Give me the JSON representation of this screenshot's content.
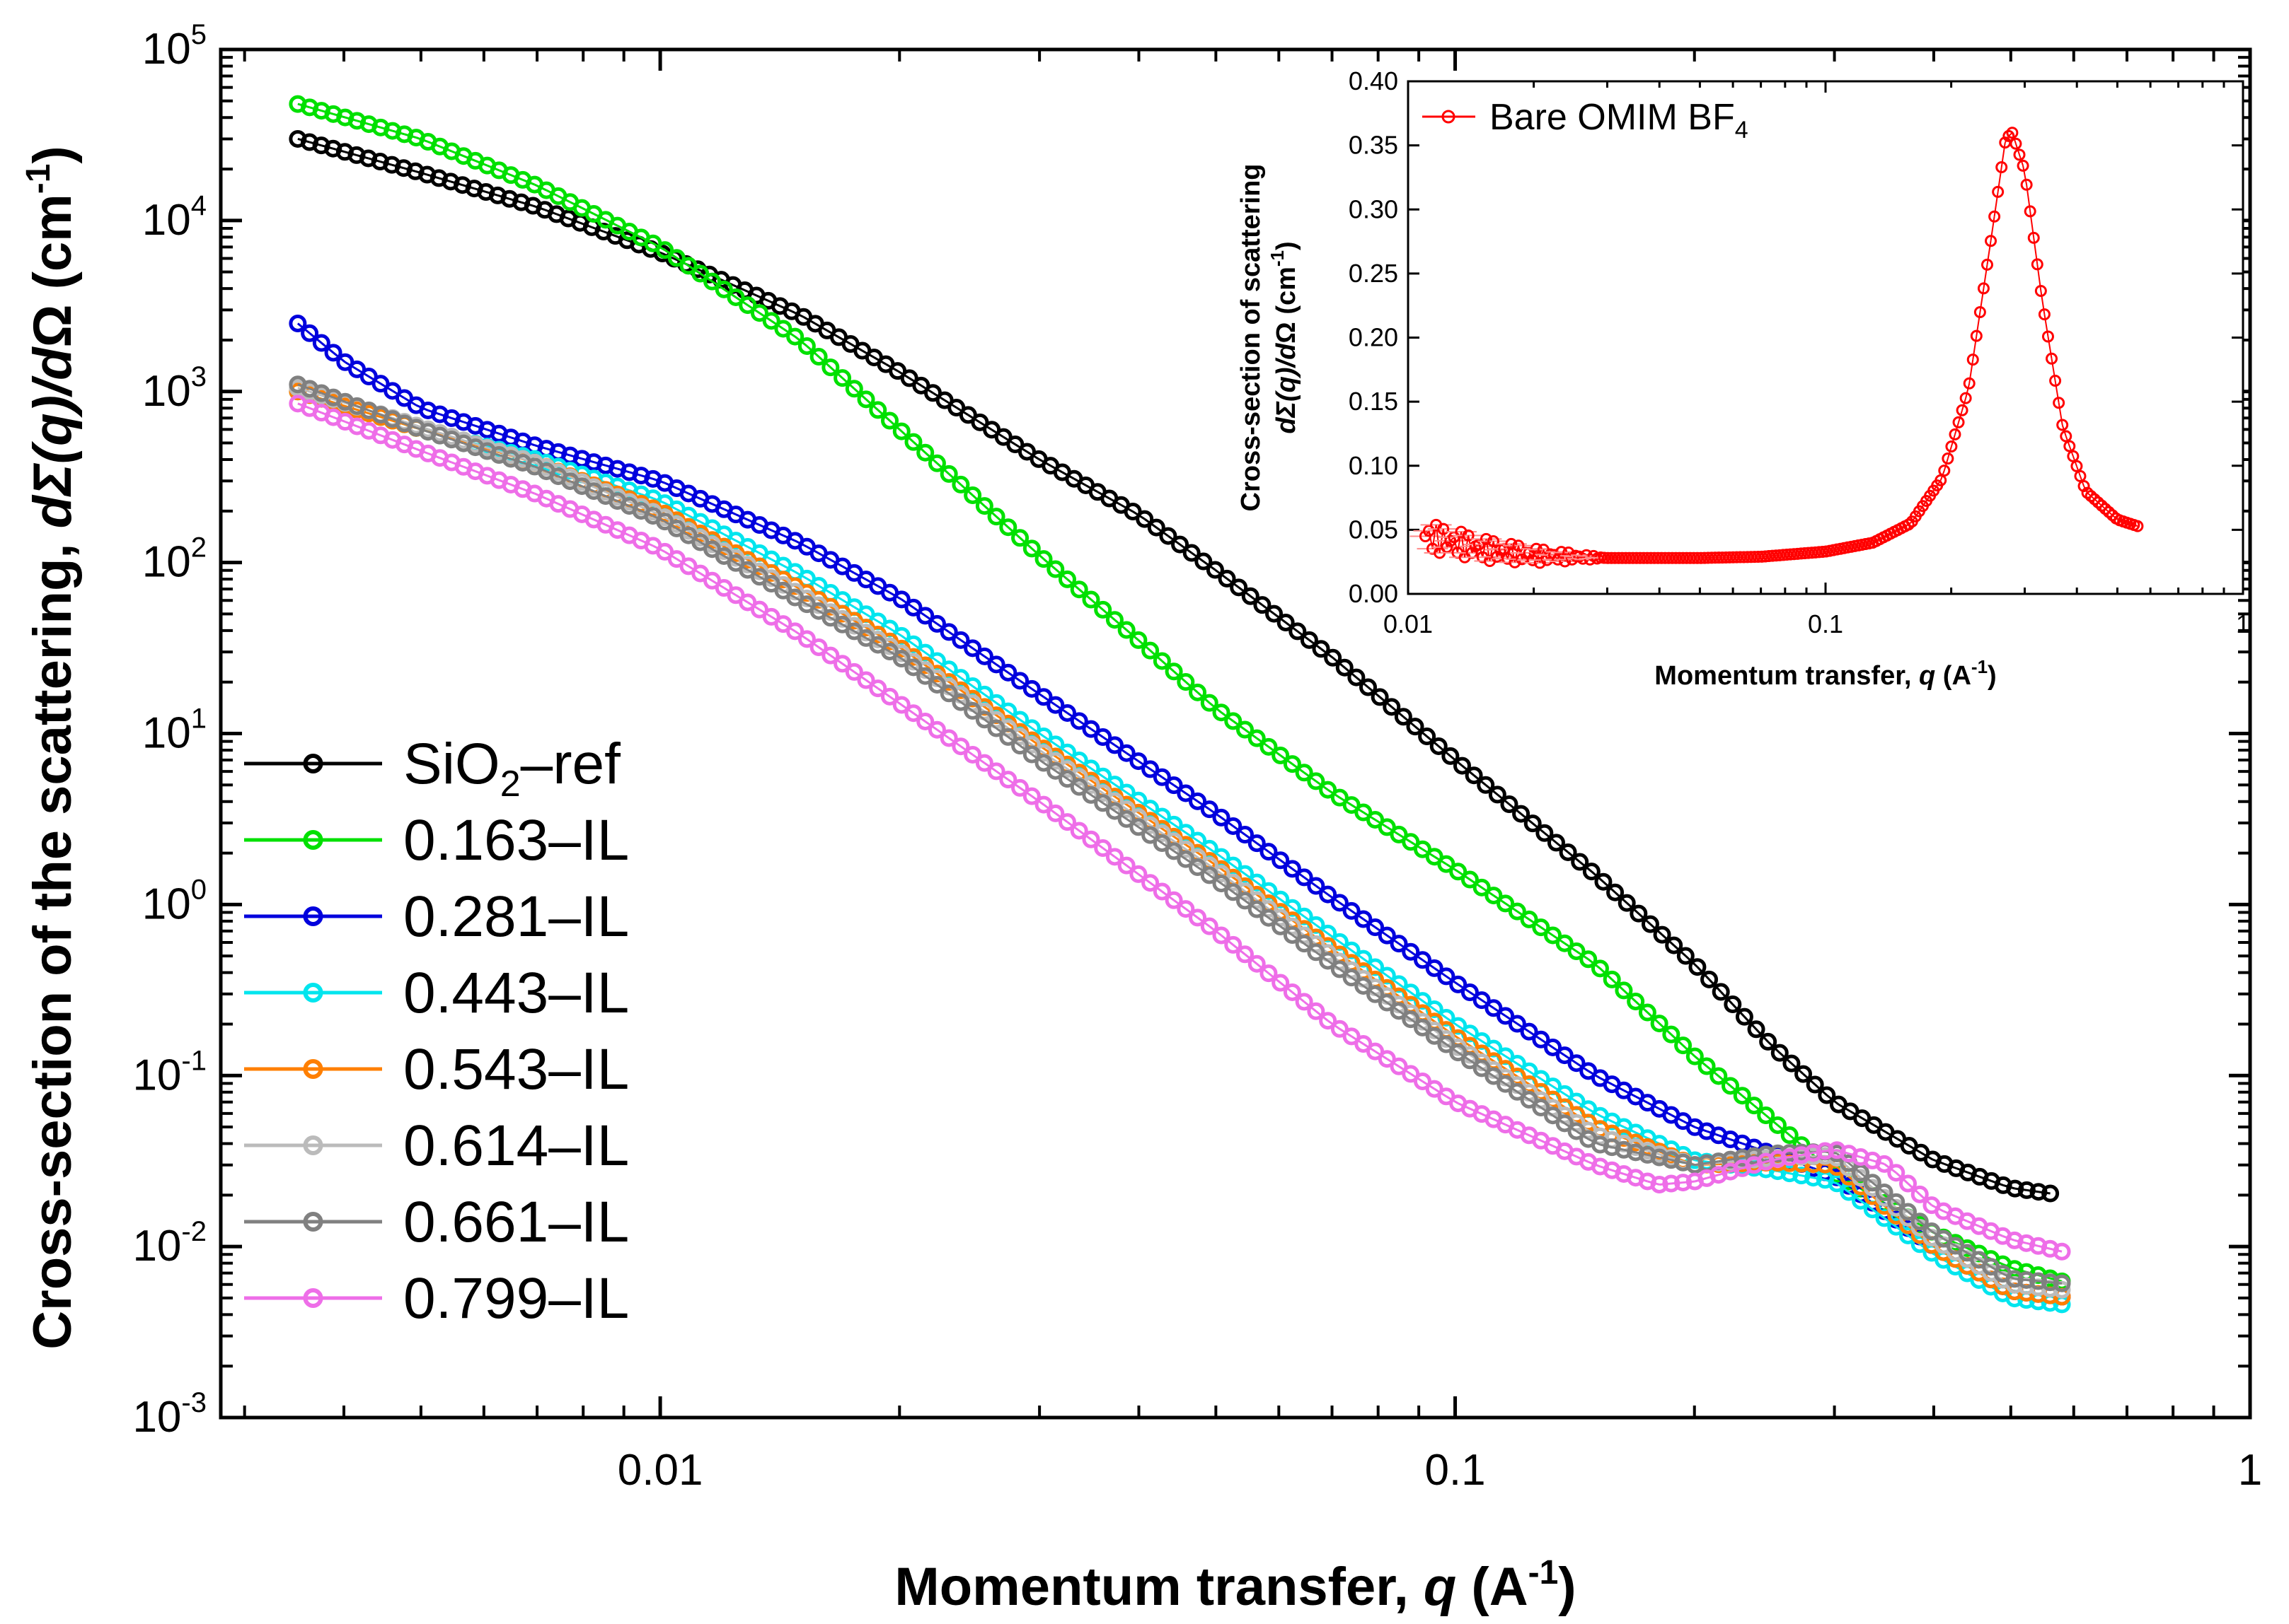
{
  "chart_data": [
    {
      "type": "scatter",
      "title": "",
      "xlabel": "Momentum transfer, q (A⁻¹)",
      "xlabel_parts": [
        "Momentum transfer, ",
        "q",
        " (A",
        "-1",
        ")"
      ],
      "ylabel": "Cross-section of the scattering, dΣ(q)/dΩ (cm⁻¹)",
      "ylabel_parts": [
        "Cross-section of the scattering, ",
        "d",
        "Σ(",
        "q",
        ")/",
        "d",
        "Ω (cm",
        "-1",
        ")"
      ],
      "x_scale": "log",
      "y_scale": "log",
      "xlim": [
        0.0028,
        1
      ],
      "ylim": [
        0.001,
        100000
      ],
      "x_ticks": [
        {
          "value": 0.01,
          "label": "0.01"
        },
        {
          "value": 0.1,
          "label": "0.1"
        },
        {
          "value": 1,
          "label": "1"
        }
      ],
      "y_ticks": [
        {
          "value": 100000,
          "base": "10",
          "exp": "5"
        },
        {
          "value": 10000,
          "base": "10",
          "exp": "4"
        },
        {
          "value": 1000,
          "base": "10",
          "exp": "3"
        },
        {
          "value": 100,
          "base": "10",
          "exp": "2"
        },
        {
          "value": 10,
          "base": "10",
          "exp": "1"
        },
        {
          "value": 1,
          "base": "10",
          "exp": "0"
        },
        {
          "value": 0.1,
          "base": "10",
          "exp": "-1"
        },
        {
          "value": 0.01,
          "base": "10",
          "exp": "-2"
        },
        {
          "value": 0.001,
          "base": "10",
          "exp": "-3"
        }
      ],
      "legend_position": "left",
      "series": [
        {
          "name": "SiO₂–ref",
          "label_parts": [
            "SiO",
            "2",
            "–ref"
          ],
          "color": "#000000",
          "points": [
            [
              0.0035,
              30000
            ],
            [
              0.005,
              19000
            ],
            [
              0.007,
              12000
            ],
            [
              0.01,
              6500
            ],
            [
              0.015,
              2800
            ],
            [
              0.02,
              1300
            ],
            [
              0.03,
              400
            ],
            [
              0.04,
              190
            ],
            [
              0.05,
              90
            ],
            [
              0.07,
              28
            ],
            [
              0.1,
              7
            ],
            [
              0.15,
              1.5
            ],
            [
              0.2,
              0.45
            ],
            [
              0.25,
              0.15
            ],
            [
              0.3,
              0.07
            ],
            [
              0.4,
              0.032
            ],
            [
              0.5,
              0.022
            ],
            [
              0.58,
              0.02
            ]
          ]
        },
        {
          "name": "0.163–IL",
          "color": "#00e000",
          "points": [
            [
              0.0035,
              48000
            ],
            [
              0.005,
              30000
            ],
            [
              0.007,
              16000
            ],
            [
              0.01,
              7000
            ],
            [
              0.015,
              2000
            ],
            [
              0.02,
              600
            ],
            [
              0.03,
              110
            ],
            [
              0.04,
              35
            ],
            [
              0.05,
              14
            ],
            [
              0.07,
              4.5
            ],
            [
              0.1,
              1.6
            ],
            [
              0.15,
              0.45
            ],
            [
              0.2,
              0.13
            ],
            [
              0.25,
              0.055
            ],
            [
              0.3,
              0.027
            ],
            [
              0.4,
              0.012
            ],
            [
              0.5,
              0.0075
            ],
            [
              0.6,
              0.006
            ]
          ]
        },
        {
          "name": "0.281–IL",
          "color": "#0000dd",
          "points": [
            [
              0.0035,
              2500
            ],
            [
              0.004,
              1500
            ],
            [
              0.005,
              800
            ],
            [
              0.007,
              480
            ],
            [
              0.01,
              300
            ],
            [
              0.015,
              130
            ],
            [
              0.02,
              62
            ],
            [
              0.03,
              17
            ],
            [
              0.05,
              3.4
            ],
            [
              0.07,
              1.1
            ],
            [
              0.1,
              0.35
            ],
            [
              0.15,
              0.1
            ],
            [
              0.2,
              0.05
            ],
            [
              0.25,
              0.035
            ],
            [
              0.3,
              0.026
            ],
            [
              0.4,
              0.01
            ],
            [
              0.5,
              0.0055
            ],
            [
              0.6,
              0.005
            ]
          ]
        },
        {
          "name": "0.443–IL",
          "color": "#00e5ee",
          "points": [
            [
              0.0035,
              1000
            ],
            [
              0.005,
              600
            ],
            [
              0.007,
              400
            ],
            [
              0.01,
              230
            ],
            [
              0.015,
              85
            ],
            [
              0.02,
              38
            ],
            [
              0.03,
              10
            ],
            [
              0.05,
              2
            ],
            [
              0.07,
              0.65
            ],
            [
              0.1,
              0.2
            ],
            [
              0.15,
              0.06
            ],
            [
              0.2,
              0.032
            ],
            [
              0.25,
              0.028
            ],
            [
              0.3,
              0.024
            ],
            [
              0.4,
              0.009
            ],
            [
              0.5,
              0.005
            ],
            [
              0.6,
              0.0045
            ]
          ]
        },
        {
          "name": "0.543–IL",
          "color": "#ff7f00",
          "points": [
            [
              0.0035,
              1000
            ],
            [
              0.005,
              600
            ],
            [
              0.007,
              380
            ],
            [
              0.01,
              200
            ],
            [
              0.015,
              70
            ],
            [
              0.02,
              32
            ],
            [
              0.03,
              8.5
            ],
            [
              0.05,
              1.7
            ],
            [
              0.07,
              0.55
            ],
            [
              0.1,
              0.17
            ],
            [
              0.15,
              0.05
            ],
            [
              0.2,
              0.03
            ],
            [
              0.25,
              0.031
            ],
            [
              0.3,
              0.03
            ],
            [
              0.4,
              0.01
            ],
            [
              0.5,
              0.0055
            ],
            [
              0.6,
              0.005
            ]
          ]
        },
        {
          "name": "0.614–IL",
          "color": "#bbbbbb",
          "points": [
            [
              0.0035,
              1050
            ],
            [
              0.005,
              620
            ],
            [
              0.007,
              380
            ],
            [
              0.01,
              190
            ],
            [
              0.015,
              65
            ],
            [
              0.02,
              30
            ],
            [
              0.03,
              8
            ],
            [
              0.05,
              1.6
            ],
            [
              0.07,
              0.5
            ],
            [
              0.1,
              0.15
            ],
            [
              0.15,
              0.045
            ],
            [
              0.2,
              0.03
            ],
            [
              0.25,
              0.033
            ],
            [
              0.3,
              0.034
            ],
            [
              0.4,
              0.011
            ],
            [
              0.5,
              0.006
            ],
            [
              0.6,
              0.0055
            ]
          ]
        },
        {
          "name": "0.661–IL",
          "color": "#808080",
          "points": [
            [
              0.0035,
              1100
            ],
            [
              0.005,
              600
            ],
            [
              0.007,
              360
            ],
            [
              0.01,
              180
            ],
            [
              0.015,
              60
            ],
            [
              0.02,
              28
            ],
            [
              0.03,
              7
            ],
            [
              0.05,
              1.4
            ],
            [
              0.07,
              0.45
            ],
            [
              0.1,
              0.14
            ],
            [
              0.15,
              0.04
            ],
            [
              0.2,
              0.03
            ],
            [
              0.25,
              0.035
            ],
            [
              0.3,
              0.036
            ],
            [
              0.4,
              0.012
            ],
            [
              0.5,
              0.0065
            ],
            [
              0.6,
              0.006
            ]
          ]
        },
        {
          "name": "0.799–IL",
          "color": "#ee6ee8",
          "points": [
            [
              0.0035,
              850
            ],
            [
              0.005,
              450
            ],
            [
              0.007,
              250
            ],
            [
              0.01,
              120
            ],
            [
              0.015,
              38
            ],
            [
              0.02,
              15
            ],
            [
              0.03,
              4
            ],
            [
              0.05,
              0.7
            ],
            [
              0.07,
              0.2
            ],
            [
              0.1,
              0.07
            ],
            [
              0.15,
              0.03
            ],
            [
              0.18,
              0.023
            ],
            [
              0.2,
              0.024
            ],
            [
              0.25,
              0.032
            ],
            [
              0.3,
              0.037
            ],
            [
              0.35,
              0.03
            ],
            [
              0.4,
              0.017
            ],
            [
              0.5,
              0.011
            ],
            [
              0.6,
              0.009
            ]
          ]
        }
      ]
    },
    {
      "type": "scatter",
      "title": "",
      "xlabel": "Momentum transfer, q (A⁻¹)",
      "xlabel_parts": [
        "Momentum transfer, ",
        "q",
        " (A",
        "-1",
        ")"
      ],
      "ylabel": "Cross-section of scattering dΣ(q)/dΩ (cm⁻¹)",
      "ylabel_line1": "Cross-section of scattering",
      "ylabel_parts": [
        "d",
        "Σ(",
        "q",
        ")/",
        "d",
        "Ω (cm",
        "-1",
        ")"
      ],
      "x_scale": "log",
      "y_scale": "linear",
      "xlim": [
        0.01,
        1
      ],
      "ylim": [
        0,
        0.4
      ],
      "x_ticks": [
        {
          "value": 0.01,
          "label": "0.01"
        },
        {
          "value": 0.1,
          "label": "0.1"
        },
        {
          "value": 1,
          "label": "1"
        }
      ],
      "y_ticks": [
        {
          "value": 0,
          "label": "0.00"
        },
        {
          "value": 0.05,
          "label": "0.05"
        },
        {
          "value": 0.1,
          "label": "0.10"
        },
        {
          "value": 0.15,
          "label": "0.15"
        },
        {
          "value": 0.2,
          "label": "0.20"
        },
        {
          "value": 0.25,
          "label": "0.25"
        },
        {
          "value": 0.3,
          "label": "0.30"
        },
        {
          "value": 0.35,
          "label": "0.35"
        },
        {
          "value": 0.4,
          "label": "0.40"
        }
      ],
      "legend_position": "top-left",
      "series": [
        {
          "name": "Bare OMIM BF₄",
          "label_parts": [
            "Bare OMIM BF",
            "4"
          ],
          "color": "#ff0000",
          "points": [
            [
              0.011,
              0.045
            ],
            [
              0.013,
              0.04
            ],
            [
              0.015,
              0.035
            ],
            [
              0.02,
              0.03
            ],
            [
              0.03,
              0.028
            ],
            [
              0.05,
              0.028
            ],
            [
              0.07,
              0.029
            ],
            [
              0.1,
              0.033
            ],
            [
              0.13,
              0.04
            ],
            [
              0.16,
              0.055
            ],
            [
              0.19,
              0.09
            ],
            [
              0.22,
              0.16
            ],
            [
              0.25,
              0.28
            ],
            [
              0.27,
              0.355
            ],
            [
              0.28,
              0.36
            ],
            [
              0.3,
              0.33
            ],
            [
              0.33,
              0.23
            ],
            [
              0.37,
              0.13
            ],
            [
              0.42,
              0.08
            ],
            [
              0.5,
              0.058
            ],
            [
              0.57,
              0.052
            ]
          ]
        }
      ]
    }
  ]
}
